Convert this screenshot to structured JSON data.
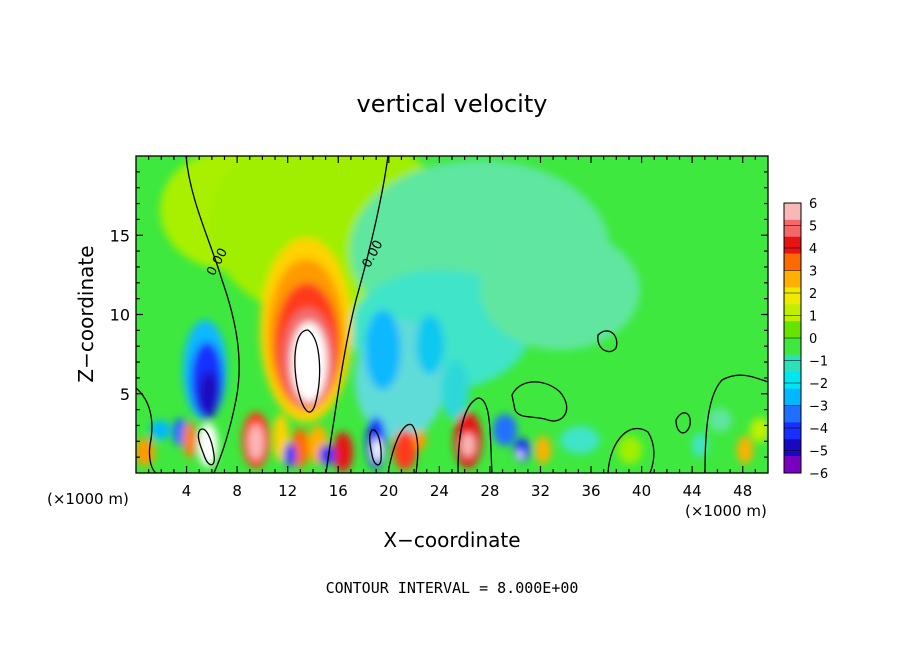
{
  "chart_data": {
    "type": "heatmap",
    "title": "vertical velocity",
    "xlabel": "X−coordinate",
    "ylabel": "Z−coordinate",
    "x_unit_left": "(×1000 m)",
    "x_unit_right": "(×1000 m)",
    "xlim": [
      0,
      50
    ],
    "ylim": [
      0,
      20
    ],
    "x_ticks": [
      4,
      8,
      12,
      16,
      20,
      24,
      28,
      32,
      36,
      40,
      44,
      48
    ],
    "x_tick_labels": [
      "4",
      "8",
      "12",
      "16",
      "20",
      "24",
      "28",
      "32",
      "36",
      "40",
      "44",
      "48"
    ],
    "y_ticks": [
      5,
      10,
      15
    ],
    "y_tick_labels": [
      "5",
      "10",
      "15"
    ],
    "contour_labels": [
      {
        "text": "0.00",
        "x": 6.7,
        "z": 13.2
      },
      {
        "text": "0.00",
        "x": 19.0,
        "z": 13.7
      }
    ],
    "footer": "CONTOUR INTERVAL = 8.000E+00",
    "colorbar": {
      "labels": [
        "6",
        "5",
        "4",
        "3",
        "2",
        "1",
        "0",
        "−1",
        "−2",
        "−3",
        "−4",
        "−5",
        "−6"
      ],
      "colors": [
        "#f8b8b8",
        "#f46868",
        "#e81414",
        "#ff6a00",
        "#ffb000",
        "#f0ea00",
        "#c0f000",
        "#66e400",
        "#3ee83e",
        "#2ee0b8",
        "#00e6f0",
        "#00b8ff",
        "#2070ff",
        "#1830ff",
        "#1a08c0",
        "#7a00c0"
      ]
    }
  }
}
